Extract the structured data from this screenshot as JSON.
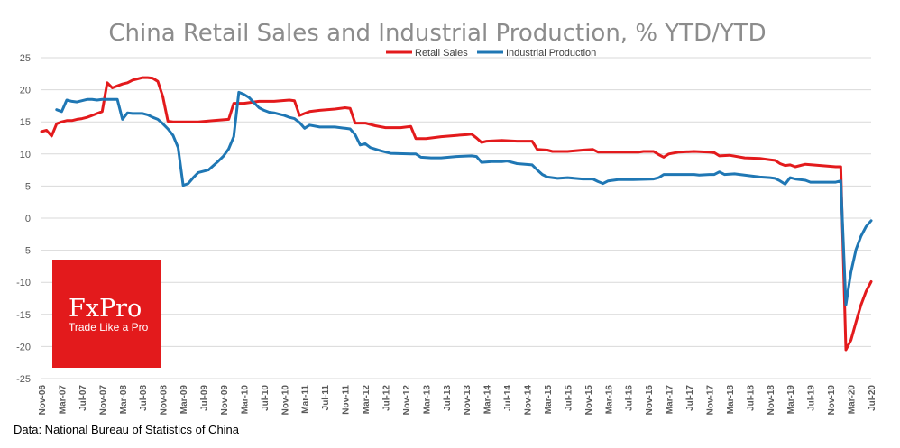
{
  "chart_data": {
    "type": "line",
    "title": "China Retail Sales and Industrial Production, % YTD/YTD",
    "xlabel": "",
    "ylabel": "",
    "ylim": [
      -25,
      25
    ],
    "yticks": [
      25,
      20,
      15,
      10,
      5,
      0,
      -5,
      -10,
      -15,
      -20,
      -25
    ],
    "grid": true,
    "legend_position": "top-center",
    "x_start": "2006-11",
    "x_end": "2020-07",
    "x_tick_labels": [
      "Nov-06",
      "Mar-07",
      "Jul-07",
      "Nov-07",
      "Mar-08",
      "Jul-08",
      "Nov-08",
      "Mar-09",
      "Jul-09",
      "Nov-09",
      "Mar-10",
      "Jul-10",
      "Nov-10",
      "Mar-11",
      "Jul-11",
      "Nov-11",
      "Mar-12",
      "Jul-12",
      "Nov-12",
      "Mar-13",
      "Jul-13",
      "Nov-13",
      "Mar-14",
      "Jul-14",
      "Nov-14",
      "Mar-15",
      "Jul-15",
      "Nov-15",
      "Mar-16",
      "Jul-16",
      "Nov-16",
      "Mar-17",
      "Jul-17",
      "Nov-17",
      "Mar-18",
      "Jul-18",
      "Nov-18",
      "Mar-19",
      "Jul-19",
      "Nov-19",
      "Mar-20",
      "Jul-20"
    ],
    "series": [
      {
        "name": "Retail Sales",
        "color": "#e31a1c",
        "points": [
          [
            "2006-11",
            13.5
          ],
          [
            "2006-12",
            13.7
          ],
          [
            "2007-01",
            12.8
          ],
          [
            "2007-02",
            14.7
          ],
          [
            "2007-03",
            15.0
          ],
          [
            "2007-04",
            15.2
          ],
          [
            "2007-05",
            15.2
          ],
          [
            "2007-06",
            15.4
          ],
          [
            "2007-07",
            15.5
          ],
          [
            "2007-08",
            15.7
          ],
          [
            "2007-09",
            16.0
          ],
          [
            "2007-10",
            16.3
          ],
          [
            "2007-11",
            16.6
          ],
          [
            "2007-12",
            21.1
          ],
          [
            "2008-01",
            20.3
          ],
          [
            "2008-02",
            20.6
          ],
          [
            "2008-03",
            20.9
          ],
          [
            "2008-04",
            21.1
          ],
          [
            "2008-05",
            21.5
          ],
          [
            "2008-06",
            21.7
          ],
          [
            "2008-07",
            21.9
          ],
          [
            "2008-08",
            21.9
          ],
          [
            "2008-09",
            21.8
          ],
          [
            "2008-10",
            21.3
          ],
          [
            "2008-11",
            18.9
          ],
          [
            "2008-12",
            15.1
          ],
          [
            "2009-01",
            15.0
          ],
          [
            "2009-03",
            15.0
          ],
          [
            "2009-06",
            15.0
          ],
          [
            "2009-09",
            15.2
          ],
          [
            "2009-12",
            15.4
          ],
          [
            "2010-01",
            17.9
          ],
          [
            "2010-03",
            17.9
          ],
          [
            "2010-06",
            18.2
          ],
          [
            "2010-09",
            18.2
          ],
          [
            "2010-12",
            18.4
          ],
          [
            "2011-01",
            18.3
          ],
          [
            "2011-02",
            16.0
          ],
          [
            "2011-03",
            16.3
          ],
          [
            "2011-04",
            16.6
          ],
          [
            "2011-06",
            16.8
          ],
          [
            "2011-09",
            17.0
          ],
          [
            "2011-11",
            17.2
          ],
          [
            "2011-12",
            17.1
          ],
          [
            "2012-01",
            14.8
          ],
          [
            "2012-03",
            14.8
          ],
          [
            "2012-05",
            14.4
          ],
          [
            "2012-07",
            14.1
          ],
          [
            "2012-10",
            14.1
          ],
          [
            "2012-12",
            14.3
          ],
          [
            "2013-01",
            12.4
          ],
          [
            "2013-03",
            12.4
          ],
          [
            "2013-06",
            12.7
          ],
          [
            "2013-09",
            12.9
          ],
          [
            "2013-11",
            13.0
          ],
          [
            "2013-12",
            13.1
          ],
          [
            "2014-01",
            12.5
          ],
          [
            "2014-02",
            11.8
          ],
          [
            "2014-03",
            12.0
          ],
          [
            "2014-06",
            12.1
          ],
          [
            "2014-09",
            12.0
          ],
          [
            "2014-12",
            12.0
          ],
          [
            "2015-01",
            10.7
          ],
          [
            "2015-03",
            10.6
          ],
          [
            "2015-04",
            10.4
          ],
          [
            "2015-07",
            10.4
          ],
          [
            "2015-10",
            10.6
          ],
          [
            "2015-12",
            10.7
          ],
          [
            "2016-01",
            10.3
          ],
          [
            "2016-03",
            10.3
          ],
          [
            "2016-06",
            10.3
          ],
          [
            "2016-09",
            10.3
          ],
          [
            "2016-10",
            10.4
          ],
          [
            "2016-12",
            10.4
          ],
          [
            "2017-01",
            9.9
          ],
          [
            "2017-02",
            9.5
          ],
          [
            "2017-03",
            10.0
          ],
          [
            "2017-05",
            10.3
          ],
          [
            "2017-08",
            10.4
          ],
          [
            "2017-11",
            10.3
          ],
          [
            "2017-12",
            10.2
          ],
          [
            "2018-01",
            9.7
          ],
          [
            "2018-03",
            9.8
          ],
          [
            "2018-06",
            9.4
          ],
          [
            "2018-09",
            9.3
          ],
          [
            "2018-11",
            9.1
          ],
          [
            "2018-12",
            9.0
          ],
          [
            "2019-01",
            8.5
          ],
          [
            "2019-02",
            8.2
          ],
          [
            "2019-03",
            8.3
          ],
          [
            "2019-04",
            8.0
          ],
          [
            "2019-06",
            8.4
          ],
          [
            "2019-09",
            8.2
          ],
          [
            "2019-12",
            8.0
          ],
          [
            "2020-01",
            8.0
          ],
          [
            "2020-02",
            -20.5
          ],
          [
            "2020-03",
            -19.0
          ],
          [
            "2020-04",
            -16.2
          ],
          [
            "2020-05",
            -13.5
          ],
          [
            "2020-06",
            -11.4
          ],
          [
            "2020-07",
            -9.9
          ]
        ]
      },
      {
        "name": "Industrial Production",
        "color": "#1f77b4",
        "points": [
          [
            "2007-02",
            16.9
          ],
          [
            "2007-03",
            16.6
          ],
          [
            "2007-04",
            18.4
          ],
          [
            "2007-05",
            18.2
          ],
          [
            "2007-06",
            18.1
          ],
          [
            "2007-07",
            18.3
          ],
          [
            "2007-08",
            18.5
          ],
          [
            "2007-09",
            18.5
          ],
          [
            "2007-10",
            18.4
          ],
          [
            "2007-11",
            18.5
          ],
          [
            "2007-12",
            18.5
          ],
          [
            "2008-01",
            18.5
          ],
          [
            "2008-02",
            18.5
          ],
          [
            "2008-03",
            15.4
          ],
          [
            "2008-04",
            16.4
          ],
          [
            "2008-05",
            16.3
          ],
          [
            "2008-06",
            16.3
          ],
          [
            "2008-07",
            16.3
          ],
          [
            "2008-08",
            16.1
          ],
          [
            "2008-09",
            15.7
          ],
          [
            "2008-10",
            15.4
          ],
          [
            "2008-11",
            14.7
          ],
          [
            "2008-12",
            13.9
          ],
          [
            "2009-01",
            12.9
          ],
          [
            "2009-02",
            11.0
          ],
          [
            "2009-03",
            5.1
          ],
          [
            "2009-04",
            5.4
          ],
          [
            "2009-05",
            6.3
          ],
          [
            "2009-06",
            7.1
          ],
          [
            "2009-08",
            7.5
          ],
          [
            "2009-09",
            8.2
          ],
          [
            "2009-10",
            8.9
          ],
          [
            "2009-11",
            9.7
          ],
          [
            "2009-12",
            10.8
          ],
          [
            "2010-01",
            12.7
          ],
          [
            "2010-02",
            19.6
          ],
          [
            "2010-03",
            19.3
          ],
          [
            "2010-04",
            18.8
          ],
          [
            "2010-05",
            18.0
          ],
          [
            "2010-06",
            17.2
          ],
          [
            "2010-07",
            16.8
          ],
          [
            "2010-08",
            16.5
          ],
          [
            "2010-09",
            16.4
          ],
          [
            "2010-10",
            16.2
          ],
          [
            "2010-11",
            16.0
          ],
          [
            "2010-12",
            15.7
          ],
          [
            "2011-01",
            15.5
          ],
          [
            "2011-02",
            14.9
          ],
          [
            "2011-03",
            14.0
          ],
          [
            "2011-04",
            14.5
          ],
          [
            "2011-06",
            14.2
          ],
          [
            "2011-09",
            14.2
          ],
          [
            "2011-11",
            14.0
          ],
          [
            "2011-12",
            13.9
          ],
          [
            "2012-01",
            13.0
          ],
          [
            "2012-02",
            11.4
          ],
          [
            "2012-03",
            11.6
          ],
          [
            "2012-04",
            11.0
          ],
          [
            "2012-06",
            10.5
          ],
          [
            "2012-08",
            10.1
          ],
          [
            "2012-12",
            10.0
          ],
          [
            "2013-01",
            10.0
          ],
          [
            "2013-02",
            9.5
          ],
          [
            "2013-04",
            9.4
          ],
          [
            "2013-06",
            9.4
          ],
          [
            "2013-09",
            9.6
          ],
          [
            "2013-12",
            9.7
          ],
          [
            "2014-01",
            9.6
          ],
          [
            "2014-02",
            8.7
          ],
          [
            "2014-04",
            8.8
          ],
          [
            "2014-06",
            8.8
          ],
          [
            "2014-07",
            8.9
          ],
          [
            "2014-09",
            8.5
          ],
          [
            "2014-12",
            8.3
          ],
          [
            "2015-01",
            7.5
          ],
          [
            "2015-02",
            6.8
          ],
          [
            "2015-03",
            6.4
          ],
          [
            "2015-05",
            6.2
          ],
          [
            "2015-07",
            6.3
          ],
          [
            "2015-10",
            6.1
          ],
          [
            "2015-12",
            6.1
          ],
          [
            "2016-01",
            5.7
          ],
          [
            "2016-02",
            5.4
          ],
          [
            "2016-03",
            5.8
          ],
          [
            "2016-05",
            6.0
          ],
          [
            "2016-08",
            6.0
          ],
          [
            "2016-12",
            6.1
          ],
          [
            "2017-01",
            6.3
          ],
          [
            "2017-02",
            6.8
          ],
          [
            "2017-05",
            6.8
          ],
          [
            "2017-08",
            6.8
          ],
          [
            "2017-09",
            6.7
          ],
          [
            "2017-11",
            6.8
          ],
          [
            "2017-12",
            6.8
          ],
          [
            "2018-01",
            7.2
          ],
          [
            "2018-02",
            6.8
          ],
          [
            "2018-04",
            6.9
          ],
          [
            "2018-07",
            6.6
          ],
          [
            "2018-09",
            6.4
          ],
          [
            "2018-11",
            6.3
          ],
          [
            "2018-12",
            6.2
          ],
          [
            "2019-01",
            5.8
          ],
          [
            "2019-02",
            5.3
          ],
          [
            "2019-03",
            6.3
          ],
          [
            "2019-04",
            6.1
          ],
          [
            "2019-06",
            5.9
          ],
          [
            "2019-07",
            5.6
          ],
          [
            "2019-09",
            5.6
          ],
          [
            "2019-12",
            5.6
          ],
          [
            "2020-01",
            5.8
          ],
          [
            "2020-02",
            -13.5
          ],
          [
            "2020-03",
            -8.4
          ],
          [
            "2020-04",
            -4.9
          ],
          [
            "2020-05",
            -2.8
          ],
          [
            "2020-06",
            -1.3
          ],
          [
            "2020-07",
            -0.4
          ]
        ]
      }
    ]
  },
  "logo": {
    "brand": "FxPro",
    "tagline": "Trade Like a Pro",
    "color": "#e31a1c"
  },
  "source_note": "Data: National Bureau of Statistics of China"
}
